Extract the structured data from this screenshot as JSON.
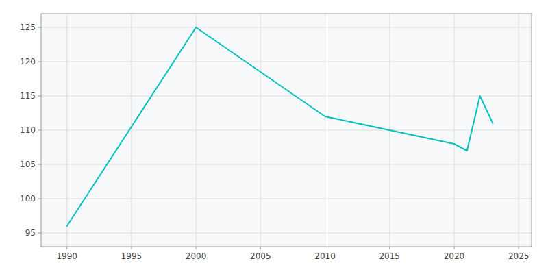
{
  "chart_data": {
    "type": "line",
    "x": [
      1990,
      2000,
      2010,
      2015,
      2020,
      2021,
      2022,
      2023
    ],
    "values": [
      96,
      125,
      112,
      110,
      108,
      107,
      115,
      111
    ],
    "color": "#00C0C0",
    "xlim": [
      1988,
      2026
    ],
    "ylim": [
      93,
      127
    ],
    "xticks": [
      1990,
      1995,
      2000,
      2005,
      2010,
      2015,
      2020,
      2025
    ],
    "yticks": [
      95,
      100,
      105,
      110,
      115,
      120,
      125
    ],
    "grid": true
  }
}
